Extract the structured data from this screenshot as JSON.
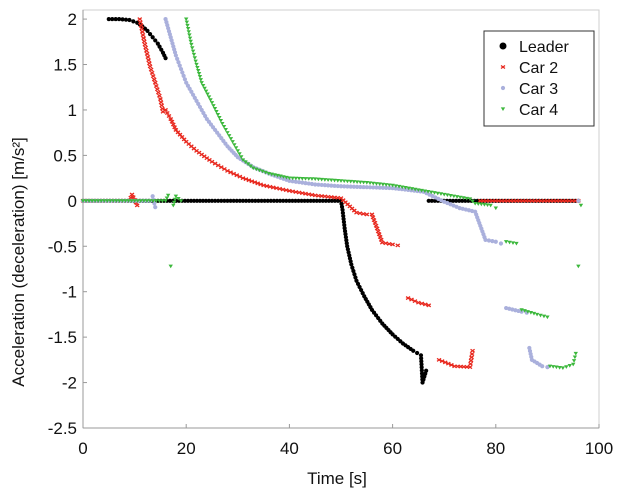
{
  "chart_data": {
    "type": "scatter",
    "xlabel": "Time [s]",
    "ylabel": "Acceleration  (deceleration) [m/s²]",
    "xlim": [
      0,
      100
    ],
    "ylim": [
      -2.5,
      2.1
    ],
    "xticks": [
      0,
      20,
      40,
      60,
      80,
      100
    ],
    "yticks": [
      2,
      1.5,
      1,
      0.5,
      0,
      -0.5,
      -1,
      -1.5,
      -2,
      -2.5
    ],
    "xtick_labels": [
      "0",
      "20",
      "40",
      "60",
      "80",
      "100"
    ],
    "ytick_labels": [
      "2",
      "1.5",
      "1",
      "0.5",
      "0",
      "-0.5",
      "-1",
      "-1.5",
      "-2",
      "-2.5"
    ],
    "grid": false,
    "legend_position": "top-right",
    "series": [
      {
        "name": "Leader",
        "color": "#000000",
        "marker": "dot",
        "points": [
          [
            5,
            2.0
          ],
          [
            7,
            2.0
          ],
          [
            9,
            1.99
          ],
          [
            10.5,
            1.96
          ],
          [
            11.5,
            1.92
          ],
          [
            12.5,
            1.87
          ],
          [
            13.5,
            1.8
          ],
          [
            14.5,
            1.73
          ],
          [
            15.5,
            1.63
          ],
          [
            16,
            1.57
          ],
          [
            0,
            0
          ],
          [
            25,
            0
          ],
          [
            40,
            0
          ],
          [
            50,
            0
          ],
          [
            50.3,
            -0.1
          ],
          [
            50.7,
            -0.3
          ],
          [
            51.2,
            -0.5
          ],
          [
            52,
            -0.7
          ],
          [
            53,
            -0.88
          ],
          [
            54.5,
            -1.05
          ],
          [
            56,
            -1.2
          ],
          [
            58,
            -1.35
          ],
          [
            60,
            -1.47
          ],
          [
            62,
            -1.57
          ],
          [
            64,
            -1.65
          ],
          [
            65.5,
            -1.7
          ],
          [
            65.8,
            -2.0
          ],
          [
            66.5,
            -1.87
          ],
          [
            67,
            0
          ],
          [
            80,
            0
          ],
          [
            96,
            0
          ]
        ]
      },
      {
        "name": "Car 2",
        "color": "#e8281e",
        "marker": "x",
        "points": [
          [
            0,
            0
          ],
          [
            9,
            0
          ],
          [
            9.5,
            0.07
          ],
          [
            10.5,
            -0.05
          ],
          [
            11,
            2.0
          ],
          [
            12,
            1.72
          ],
          [
            13,
            1.48
          ],
          [
            14,
            1.3
          ],
          [
            15,
            1.12
          ],
          [
            15.5,
            0.98
          ],
          [
            16,
            1.0
          ],
          [
            17,
            0.9
          ],
          [
            18,
            0.78
          ],
          [
            20,
            0.65
          ],
          [
            22,
            0.55
          ],
          [
            25,
            0.43
          ],
          [
            28,
            0.33
          ],
          [
            31,
            0.25
          ],
          [
            35,
            0.17
          ],
          [
            40,
            0.11
          ],
          [
            45,
            0.06
          ],
          [
            50,
            0.03
          ],
          [
            53,
            -0.13
          ],
          [
            55,
            -0.15
          ],
          [
            56,
            -0.15
          ],
          [
            58,
            -0.46
          ],
          [
            60,
            -0.48
          ],
          [
            61,
            -0.49
          ],
          [
            63,
            -1.07
          ],
          [
            65,
            -1.12
          ],
          [
            67,
            -1.15
          ],
          [
            69,
            -1.75
          ],
          [
            72,
            -1.82
          ],
          [
            75,
            -1.83
          ],
          [
            75.5,
            -1.65
          ],
          [
            77,
            0
          ],
          [
            87,
            0
          ],
          [
            96,
            0
          ]
        ]
      },
      {
        "name": "Car 3",
        "color": "#aab0dc",
        "marker": "dot",
        "points": [
          [
            0,
            0
          ],
          [
            13,
            0
          ],
          [
            13.5,
            0.05
          ],
          [
            14,
            -0.07
          ],
          [
            16,
            2.0
          ],
          [
            17,
            1.8
          ],
          [
            18,
            1.6
          ],
          [
            19,
            1.45
          ],
          [
            20,
            1.3
          ],
          [
            22,
            1.1
          ],
          [
            24,
            0.9
          ],
          [
            26,
            0.75
          ],
          [
            28,
            0.6
          ],
          [
            30,
            0.48
          ],
          [
            33,
            0.37
          ],
          [
            36,
            0.3
          ],
          [
            40,
            0.22
          ],
          [
            45,
            0.18
          ],
          [
            50,
            0.16
          ],
          [
            55,
            0.15
          ],
          [
            60,
            0.14
          ],
          [
            66,
            0.1
          ],
          [
            70,
            -0.01
          ],
          [
            73,
            -0.08
          ],
          [
            76,
            -0.12
          ],
          [
            78,
            -0.43
          ],
          [
            80,
            -0.45
          ],
          [
            81,
            -0.47
          ],
          [
            82,
            -1.18
          ],
          [
            85,
            -1.22
          ],
          [
            86,
            -1.23
          ],
          [
            86.5,
            -1.62
          ],
          [
            87,
            -1.75
          ],
          [
            89,
            -1.82
          ],
          [
            90,
            -1.83
          ],
          [
            96,
            0
          ]
        ]
      },
      {
        "name": "Car 4",
        "color": "#3cb83c",
        "marker": "triangle",
        "points": [
          [
            0,
            0
          ],
          [
            10,
            0
          ],
          [
            16,
            0
          ],
          [
            16.5,
            0.06
          ],
          [
            17,
            -0.72
          ],
          [
            17.5,
            -0.05
          ],
          [
            18,
            0.05
          ],
          [
            19,
            0
          ],
          [
            20,
            2.0
          ],
          [
            21,
            1.72
          ],
          [
            22,
            1.5
          ],
          [
            23,
            1.3
          ],
          [
            25,
            1.08
          ],
          [
            27,
            0.85
          ],
          [
            29,
            0.65
          ],
          [
            31,
            0.45
          ],
          [
            33,
            0.36
          ],
          [
            36,
            0.3
          ],
          [
            40,
            0.25
          ],
          [
            45,
            0.24
          ],
          [
            50,
            0.22
          ],
          [
            55,
            0.2
          ],
          [
            60,
            0.17
          ],
          [
            65,
            0.12
          ],
          [
            70,
            0.07
          ],
          [
            75,
            0.02
          ],
          [
            76,
            -0.03
          ],
          [
            79,
            -0.05
          ],
          [
            80,
            -0.08
          ],
          [
            82,
            -0.45
          ],
          [
            84,
            -0.47
          ],
          [
            85,
            -1.2
          ],
          [
            88,
            -1.25
          ],
          [
            90,
            -1.28
          ],
          [
            90.5,
            -1.82
          ],
          [
            93,
            -1.84
          ],
          [
            95,
            -1.8
          ],
          [
            95.5,
            -1.68
          ],
          [
            96,
            -0.72
          ],
          [
            96.5,
            -0.05
          ]
        ]
      }
    ]
  }
}
